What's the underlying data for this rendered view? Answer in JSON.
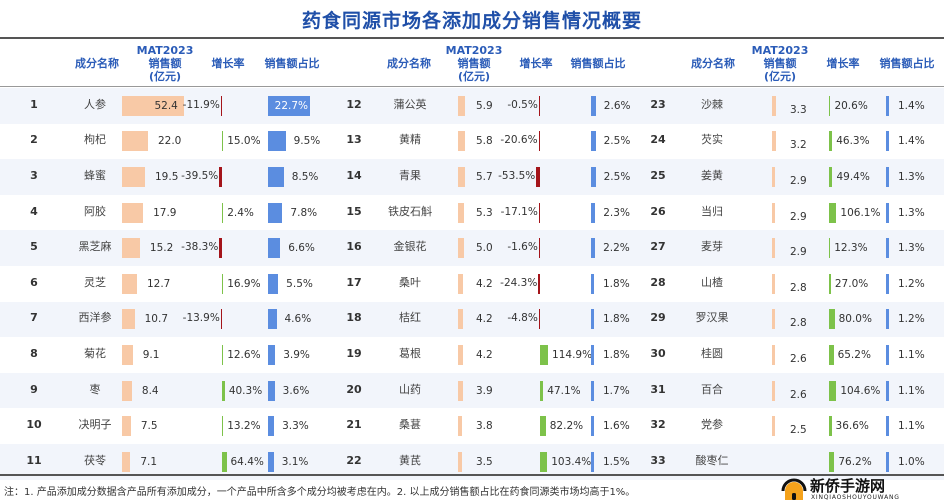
{
  "title": "药食同源市场各添加成分销售情况概要",
  "headers": {
    "name": "成分名称",
    "sales_line1": "MAT2023",
    "sales_line2": "销售额",
    "sales_line3": "(亿元)",
    "growth": "增长率",
    "share": "销售额占比"
  },
  "colors": {
    "sales_bar": "#f8c9a6",
    "share_bar": "#5b8de0",
    "growth_positive": "#7dc24a",
    "growth_negative": "#a4141a",
    "header_text": "#2b5cb8",
    "row_alt": "#f2f5fb"
  },
  "chart_data": {
    "type": "table",
    "columns": [
      "rank",
      "name",
      "sales_2023_yi_yuan",
      "growth_pct",
      "share_pct"
    ],
    "rows": [
      {
        "rank": "1",
        "name": "人参",
        "sales": "52.4",
        "growth": "-11.9%",
        "share": "22.7%"
      },
      {
        "rank": "2",
        "name": "枸杞",
        "sales": "22.0",
        "growth": "15.0%",
        "share": "9.5%"
      },
      {
        "rank": "3",
        "name": "蜂蜜",
        "sales": "19.5",
        "growth": "-39.5%",
        "share": "8.5%"
      },
      {
        "rank": "4",
        "name": "阿胶",
        "sales": "17.9",
        "growth": "2.4%",
        "share": "7.8%"
      },
      {
        "rank": "5",
        "name": "黑芝麻",
        "sales": "15.2",
        "growth": "-38.3%",
        "share": "6.6%"
      },
      {
        "rank": "6",
        "name": "灵芝",
        "sales": "12.7",
        "growth": "16.9%",
        "share": "5.5%"
      },
      {
        "rank": "7",
        "name": "西洋参",
        "sales": "10.7",
        "growth": "-13.9%",
        "share": "4.6%"
      },
      {
        "rank": "8",
        "name": "菊花",
        "sales": "9.1",
        "growth": "12.6%",
        "share": "3.9%"
      },
      {
        "rank": "9",
        "name": "枣",
        "sales": "8.4",
        "growth": "40.3%",
        "share": "3.6%"
      },
      {
        "rank": "10",
        "name": "决明子",
        "sales": "7.5",
        "growth": "13.2%",
        "share": "3.3%"
      },
      {
        "rank": "11",
        "name": "茯苓",
        "sales": "7.1",
        "growth": "64.4%",
        "share": "3.1%"
      },
      {
        "rank": "12",
        "name": "蒲公英",
        "sales": "5.9",
        "growth": "-0.5%",
        "share": "2.6%"
      },
      {
        "rank": "13",
        "name": "黄精",
        "sales": "5.8",
        "growth": "-20.6%",
        "share": "2.5%"
      },
      {
        "rank": "14",
        "name": "青果",
        "sales": "5.7",
        "growth": "-53.5%",
        "share": "2.5%"
      },
      {
        "rank": "15",
        "name": "铁皮石斛",
        "sales": "5.3",
        "growth": "-17.1%",
        "share": "2.3%"
      },
      {
        "rank": "16",
        "name": "金银花",
        "sales": "5.0",
        "growth": "-1.6%",
        "share": "2.2%"
      },
      {
        "rank": "17",
        "name": "桑叶",
        "sales": "4.2",
        "growth": "-24.3%",
        "share": "1.8%"
      },
      {
        "rank": "18",
        "name": "桔红",
        "sales": "4.2",
        "growth": "-4.8%",
        "share": "1.8%"
      },
      {
        "rank": "19",
        "name": "葛根",
        "sales": "4.2",
        "growth": "114.9%",
        "share": "1.8%"
      },
      {
        "rank": "20",
        "name": "山药",
        "sales": "3.9",
        "growth": "47.1%",
        "share": "1.7%"
      },
      {
        "rank": "21",
        "name": "桑葚",
        "sales": "3.8",
        "growth": "82.2%",
        "share": "1.6%"
      },
      {
        "rank": "22",
        "name": "黄芪",
        "sales": "3.5",
        "growth": "103.4%",
        "share": "1.5%"
      },
      {
        "rank": "23",
        "name": "沙棘",
        "sales": "3.3",
        "growth": "20.6%",
        "share": "1.4%"
      },
      {
        "rank": "24",
        "name": "芡实",
        "sales": "3.2",
        "growth": "46.3%",
        "share": "1.4%"
      },
      {
        "rank": "25",
        "name": "姜黄",
        "sales": "2.9",
        "growth": "49.4%",
        "share": "1.3%"
      },
      {
        "rank": "26",
        "name": "当归",
        "sales": "2.9",
        "growth": "106.1%",
        "share": "1.3%"
      },
      {
        "rank": "27",
        "name": "麦芽",
        "sales": "2.9",
        "growth": "12.3%",
        "share": "1.3%"
      },
      {
        "rank": "28",
        "name": "山楂",
        "sales": "2.8",
        "growth": "27.0%",
        "share": "1.2%"
      },
      {
        "rank": "29",
        "name": "罗汉果",
        "sales": "2.8",
        "growth": "80.0%",
        "share": "1.2%"
      },
      {
        "rank": "30",
        "name": "桂圆",
        "sales": "2.6",
        "growth": "65.2%",
        "share": "1.1%"
      },
      {
        "rank": "31",
        "name": "百合",
        "sales": "2.6",
        "growth": "104.6%",
        "share": "1.1%"
      },
      {
        "rank": "32",
        "name": "党参",
        "sales": "2.5",
        "growth": "36.6%",
        "share": "1.1%"
      },
      {
        "rank": "33",
        "name": "酸枣仁",
        "sales": "",
        "growth": "76.2%",
        "share": "1.0%"
      }
    ]
  },
  "footnote": "注：1. 产品添加成分数据含产品所有添加成分，一个产品中所含多个成分均被考虑在内。2. 以上成分销售额占比在药食同源类市场均高于1%。",
  "watermark": {
    "name": "新侨手游网",
    "sub": "XINQIAOSHOUYOUWANG"
  }
}
